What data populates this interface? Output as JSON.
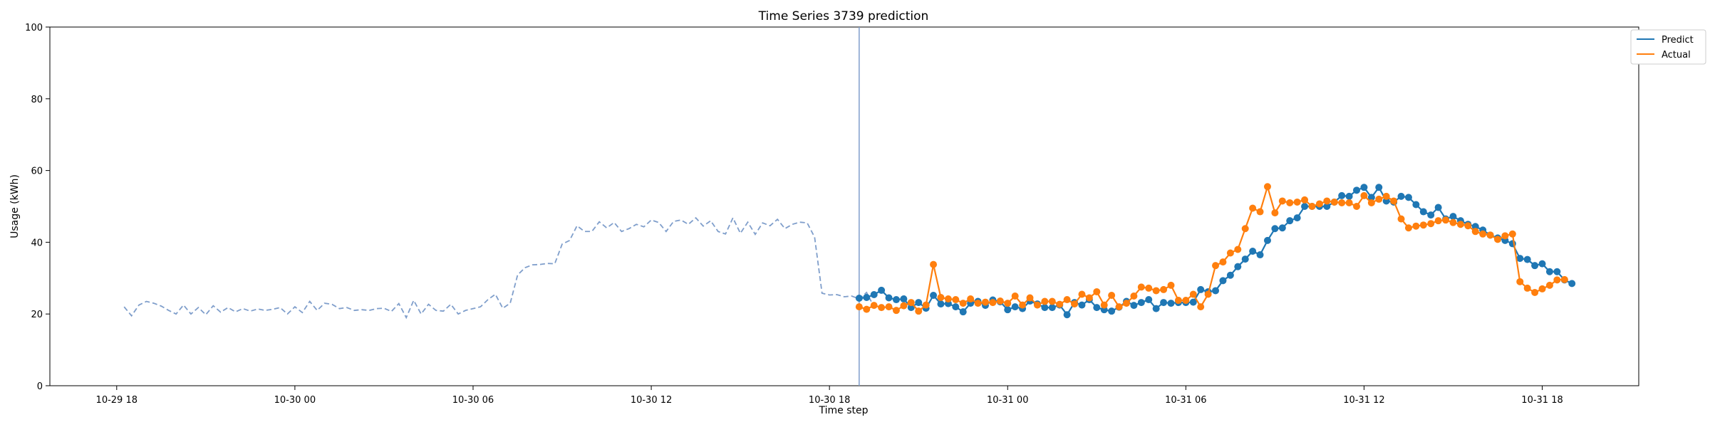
{
  "chart_data": {
    "type": "line",
    "title": "Time Series 3739 prediction",
    "xlabel": "Time step",
    "ylabel": "Usage (kWh)",
    "ylim": [
      0,
      100
    ],
    "yticks": [
      0,
      20,
      40,
      60,
      80,
      100
    ],
    "xlim": [
      "2016-10-29 15:45",
      "2016-10-31 21:15"
    ],
    "xticks": [
      {
        "t": "2016-10-29 18:00",
        "label": "10-29 18"
      },
      {
        "t": "2016-10-30 00:00",
        "label": "10-30 00"
      },
      {
        "t": "2016-10-30 06:00",
        "label": "10-30 06"
      },
      {
        "t": "2016-10-30 12:00",
        "label": "10-30 12"
      },
      {
        "t": "2016-10-30 18:00",
        "label": "10-30 18"
      },
      {
        "t": "2016-10-31 00:00",
        "label": "10-31 00"
      },
      {
        "t": "2016-10-31 06:00",
        "label": "10-31 06"
      },
      {
        "t": "2016-10-31 12:00",
        "label": "10-31 12"
      },
      {
        "t": "2016-10-31 18:00",
        "label": "10-31 18"
      }
    ],
    "interval_minutes": 15,
    "forecast_start": "2016-10-30 19:00",
    "legend": {
      "placement": "upper-right-outside",
      "entries": [
        "Predict",
        "Actual"
      ]
    },
    "colors": {
      "history": "#7f9ecb",
      "predict": "#1f77b4",
      "actual": "#ff7f0e",
      "divider": "#7f9ecb"
    },
    "series": [
      {
        "role": "history",
        "style": "dashed",
        "start": "2016-10-29 18:15",
        "values": [
          22.0,
          19.5,
          22.5,
          23.5,
          23.0,
          22.2,
          21.0,
          20.0,
          22.5,
          20.0,
          21.8,
          19.8,
          22.3,
          20.5,
          21.8,
          20.6,
          21.5,
          20.8,
          21.4,
          21.0,
          21.3,
          21.8,
          20.0,
          22.0,
          20.4,
          23.5,
          21.0,
          23.0,
          22.7,
          21.5,
          21.8,
          21.0,
          21.2,
          21.0,
          21.5,
          21.6,
          20.7,
          22.9,
          19.0,
          23.8,
          20.0,
          22.7,
          21.0,
          20.8,
          22.7,
          20.0,
          21.0,
          21.5,
          22.0,
          24.0,
          25.5,
          21.6,
          23.0,
          30.9,
          32.9,
          33.7,
          33.8,
          34.1,
          34.0,
          39.5,
          40.5,
          44.6,
          43.0,
          43.0,
          45.7,
          44.0,
          45.5,
          43.0,
          43.8,
          45.0,
          44.3,
          46.2,
          45.5,
          43.0,
          45.8,
          46.2,
          45.0,
          46.8,
          44.5,
          46.0,
          43.0,
          42.3,
          46.8,
          42.5,
          45.6,
          42.2,
          45.4,
          44.6,
          46.4,
          43.8,
          45.0,
          45.6,
          45.4,
          41.4,
          25.8,
          25.3,
          25.4,
          24.8,
          25.0,
          24.2,
          26.0,
          22.0,
          22.0
        ]
      },
      {
        "name": "Predict",
        "role": "predict",
        "style": "solid-markers",
        "start": "2016-10-30 19:00",
        "values": [
          24.4,
          24.6,
          25.4,
          26.6,
          24.5,
          24.0,
          24.2,
          21.8,
          23.2,
          21.6,
          25.2,
          22.8,
          22.9,
          22.0,
          20.6,
          23.0,
          23.5,
          22.4,
          23.9,
          23.4,
          21.2,
          22.0,
          21.5,
          23.6,
          22.8,
          21.8,
          21.8,
          22.5,
          19.8,
          23.2,
          22.5,
          24.0,
          21.8,
          21.2,
          20.8,
          21.9,
          23.5,
          22.4,
          23.2,
          24.0,
          21.5,
          23.2,
          23.0,
          23.2,
          23.2,
          23.3,
          26.8,
          26.2,
          26.5,
          29.3,
          30.8,
          33.2,
          35.3,
          37.5,
          36.5,
          40.5,
          43.8,
          44.0,
          46.0,
          46.8,
          50.0,
          50.0,
          50.0,
          50.0,
          51.2,
          53.0,
          52.8,
          54.5,
          55.3,
          52.5,
          55.3,
          51.5,
          51.2,
          52.8,
          52.5,
          50.5,
          48.5,
          47.6,
          49.7,
          46.5,
          47.2,
          46.0,
          45.0,
          44.4,
          43.4,
          42.0,
          41.2,
          40.5,
          39.6,
          35.5,
          35.2,
          33.5,
          34.0,
          31.8,
          31.8,
          29.5,
          28.5
        ]
      },
      {
        "name": "Actual",
        "role": "actual",
        "style": "solid-markers",
        "start": "2016-10-30 19:00",
        "values": [
          22.0,
          21.3,
          22.4,
          21.8,
          22.0,
          21.0,
          22.3,
          23.2,
          20.8,
          22.5,
          33.8,
          24.6,
          24.2,
          24.0,
          23.0,
          24.2,
          23.0,
          23.3,
          23.2,
          23.6,
          23.0,
          25.0,
          22.5,
          24.5,
          22.5,
          23.5,
          23.5,
          22.7,
          24.0,
          22.8,
          25.5,
          24.5,
          26.2,
          22.5,
          25.2,
          22.0,
          23.0,
          25.0,
          27.5,
          27.2,
          26.5,
          26.8,
          28.0,
          23.8,
          23.8,
          25.5,
          22.0,
          25.5,
          33.5,
          34.5,
          37.0,
          38.0,
          43.8,
          49.5,
          48.5,
          55.5,
          48.2,
          51.5,
          51.0,
          51.2,
          51.8,
          50.0,
          50.7,
          51.5,
          51.2,
          51.0,
          51.0,
          50.0,
          53.0,
          51.0,
          52.0,
          52.8,
          51.5,
          46.5,
          44.0,
          44.5,
          44.8,
          45.2,
          46.0,
          46.2,
          45.5,
          45.0,
          44.6,
          43.0,
          42.3,
          42.0,
          40.8,
          41.8,
          42.3,
          29.0,
          27.2,
          26.0,
          27.0,
          28.0,
          29.5,
          29.6
        ]
      }
    ]
  }
}
